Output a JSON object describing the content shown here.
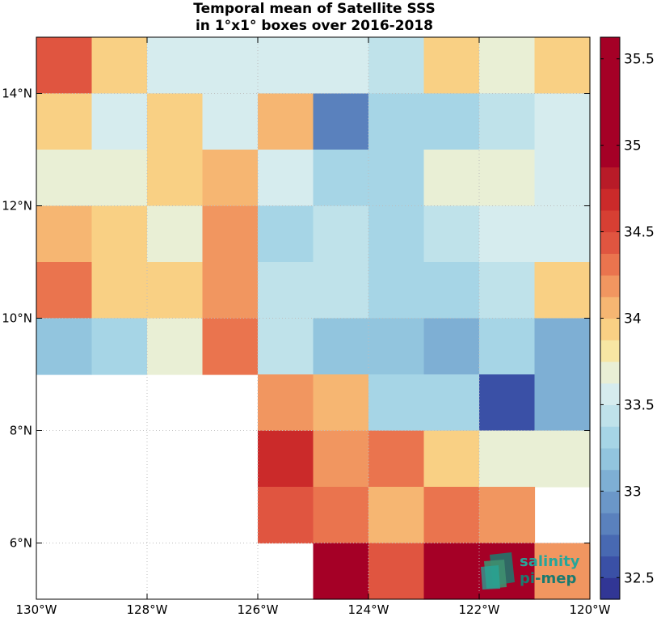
{
  "chart_data": {
    "type": "heatmap",
    "title_lines": [
      "Temporal mean of Satellite SSS",
      "in 1°x1° boxes over 2016-2018"
    ],
    "x_ticks": [
      {
        "value": -130,
        "label": "130°W"
      },
      {
        "value": -128,
        "label": "128°W"
      },
      {
        "value": -126,
        "label": "126°W"
      },
      {
        "value": -124,
        "label": "124°W"
      },
      {
        "value": -122,
        "label": "122°W"
      },
      {
        "value": -120,
        "label": "120°W"
      }
    ],
    "y_ticks": [
      {
        "value": 6,
        "label": "6°N"
      },
      {
        "value": 8,
        "label": "8°N"
      },
      {
        "value": 10,
        "label": "10°N"
      },
      {
        "value": 12,
        "label": "12°N"
      },
      {
        "value": 14,
        "label": "14°N"
      }
    ],
    "xlim": [
      -130,
      -120
    ],
    "ylim": [
      5,
      15
    ],
    "grid": true,
    "x_cell_edges": [
      -130,
      -129,
      -128,
      -127,
      -126,
      -125,
      -124,
      -123,
      -122,
      -121,
      -120
    ],
    "y_cell_edges_top_to_bottom": [
      15,
      14,
      13,
      12,
      11,
      10,
      9,
      8,
      7,
      6,
      5
    ],
    "values_top_to_bottom": [
      [
        34.4,
        33.9,
        33.55,
        33.55,
        33.55,
        33.55,
        33.45,
        33.9,
        33.7,
        33.9
      ],
      [
        33.9,
        33.55,
        33.9,
        33.55,
        34.05,
        32.75,
        33.25,
        33.25,
        33.45,
        33.55
      ],
      [
        33.7,
        33.7,
        33.9,
        34.05,
        33.55,
        33.35,
        33.35,
        33.7,
        33.7,
        33.55
      ],
      [
        34.05,
        33.9,
        33.7,
        34.2,
        33.3,
        33.45,
        33.35,
        33.45,
        33.55,
        33.55
      ],
      [
        34.3,
        33.9,
        33.9,
        34.2,
        33.45,
        33.45,
        33.35,
        33.35,
        33.45,
        33.9
      ],
      [
        33.15,
        33.3,
        33.7,
        34.3,
        33.45,
        33.15,
        33.15,
        33.05,
        33.3,
        33.05
      ],
      [
        null,
        null,
        null,
        null,
        34.2,
        34.05,
        33.35,
        33.25,
        32.6,
        33.05
      ],
      [
        null,
        null,
        null,
        null,
        34.65,
        34.2,
        34.3,
        33.9,
        33.7,
        33.7
      ],
      [
        null,
        null,
        null,
        null,
        34.45,
        34.3,
        34.05,
        34.3,
        34.15,
        null
      ],
      [
        null,
        null,
        null,
        null,
        null,
        34.95,
        34.45,
        34.95,
        34.95,
        34.15
      ]
    ],
    "colorbar": {
      "min": 32.375,
      "max": 35.625,
      "step": 0.125,
      "colors_bottom_to_top": [
        "#313695",
        "#3a50a6",
        "#4869b2",
        "#5a81bd",
        "#6b97c8",
        "#7eafd4",
        "#92c5de",
        "#a6d5e6",
        "#bfe2ea",
        "#d6ecee",
        "#e9efd5",
        "#f7e6a3",
        "#f9d084",
        "#f6b672",
        "#f19660",
        "#ea744e",
        "#e05540",
        "#d73f33",
        "#cb2a2a",
        "#b81b28",
        "#a50026",
        "#a50026",
        "#a50026",
        "#a50026",
        "#a50026",
        "#a50026"
      ],
      "ticks": [
        {
          "value": 32.5,
          "label": "32.5"
        },
        {
          "value": 33,
          "label": "33"
        },
        {
          "value": 33.5,
          "label": "33.5"
        },
        {
          "value": 34,
          "label": "34"
        },
        {
          "value": 34.5,
          "label": "34.5"
        },
        {
          "value": 35,
          "label": "35"
        },
        {
          "value": 35.5,
          "label": "35.5"
        }
      ]
    }
  },
  "logo": {
    "line1": "salinity",
    "line2": "pi-mep",
    "colors": [
      "#26a69a",
      "#1b7a70",
      "#3f8f6f"
    ]
  }
}
